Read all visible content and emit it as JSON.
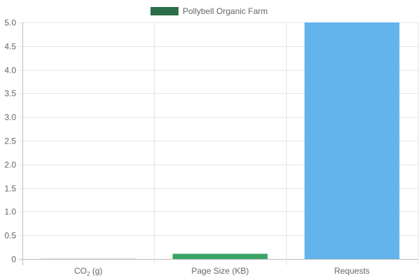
{
  "chart_data": {
    "type": "bar",
    "title": "",
    "xlabel": "",
    "ylabel": "",
    "categories": [
      {
        "label": "CO",
        "sub": "2",
        "suffix": " (g)"
      },
      {
        "label": "Page Size (KB)",
        "sub": "",
        "suffix": ""
      },
      {
        "label": "Requests",
        "sub": "",
        "suffix": ""
      }
    ],
    "series": [
      {
        "name": "Pollybell Organic Farm",
        "values": [
          0.003,
          0.11,
          5
        ]
      }
    ],
    "bar_colors": [
      "#2c6e49",
      "#3aa366",
      "#63b3ed"
    ],
    "legend_color": "#2c6e49",
    "legend_position": "top-center",
    "ylim": [
      0,
      5
    ],
    "y_ticks": [
      "0",
      "0.5",
      "1.0",
      "1.5",
      "2.0",
      "2.5",
      "3.0",
      "3.5",
      "4.0",
      "4.5",
      "5.0"
    ],
    "grid": true
  }
}
